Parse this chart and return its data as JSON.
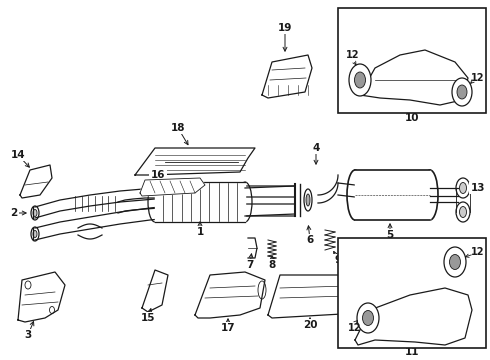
{
  "bg_color": "#ffffff",
  "line_color": "#1a1a1a",
  "fig_width": 4.9,
  "fig_height": 3.6,
  "dpi": 100,
  "xlim": [
    0,
    490
  ],
  "ylim": [
    360,
    0
  ]
}
